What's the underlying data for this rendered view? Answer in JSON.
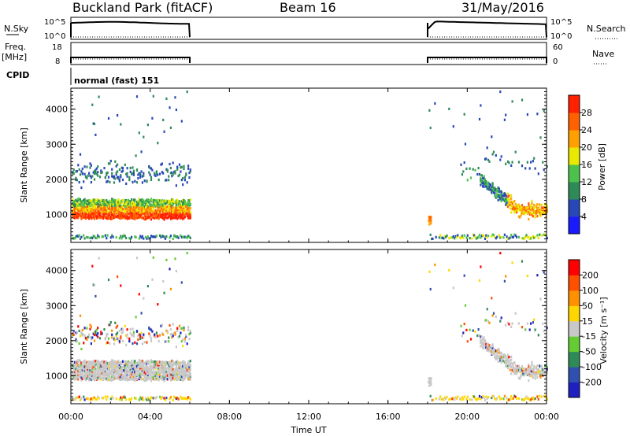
{
  "header": {
    "station": "Buckland Park (fitACF)",
    "beam": "Beam 16",
    "date": "31/May/2016"
  },
  "strips": {
    "nsky_label": "N.Sky",
    "nsearch_label": "N.Search",
    "nsky_ticks": [
      "10^5",
      "10^0"
    ],
    "nsearch_ticks": [
      "10^5",
      "10^0"
    ],
    "freq_label": "Freq.",
    "freq_unit": "[MHz]",
    "freq_ticks": [
      "18",
      "8"
    ],
    "nave_label": "Nave",
    "nave_ticks": [
      "60",
      "0"
    ],
    "cpid_label": "CPID",
    "cpid_text": "normal (fast) 151"
  },
  "xaxis": {
    "label": "Time UT",
    "ticks": [
      "00:00",
      "04:00",
      "08:00",
      "12:00",
      "16:00",
      "20:00",
      "00:00"
    ],
    "range_hours": [
      0,
      24
    ]
  },
  "colors": {
    "power": [
      "#1a1aff",
      "#2848b8",
      "#2e8b57",
      "#4cc24c",
      "#e8e800",
      "#ffa000",
      "#ff6000",
      "#ff2000"
    ],
    "velocity": [
      "#2020c0",
      "#3050b0",
      "#2e8b57",
      "#66cc33",
      "#c8c8c8",
      "#ffd700",
      "#ff9000",
      "#ff5000",
      "#ff0000"
    ]
  },
  "chart_data": [
    {
      "type": "heatmap",
      "ylabel": "Slant Range [km]",
      "yticks": [
        "1000",
        "2000",
        "3000",
        "4000"
      ],
      "ytick_values": [
        1000,
        2000,
        3000,
        4000
      ],
      "ylim": [
        200,
        4600
      ],
      "xlim": [
        0,
        24
      ],
      "colorbar_label": "Power [dB]",
      "colorbar_ticks": [
        "4",
        "8",
        "12",
        "16",
        "20",
        "24",
        "28"
      ],
      "colorbar_range": [
        0,
        30
      ],
      "data_segments_hours": [
        [
          0,
          6
        ],
        [
          18,
          24
        ]
      ]
    },
    {
      "type": "heatmap",
      "ylabel": "Slant Range [km]",
      "yticks": [
        "1000",
        "2000",
        "3000",
        "4000"
      ],
      "ytick_values": [
        1000,
        2000,
        3000,
        4000
      ],
      "ylim": [
        200,
        4600
      ],
      "xlim": [
        0,
        24
      ],
      "colorbar_label": "Velocity [m s⁻¹]",
      "colorbar_ticks": [
        "200",
        "100",
        "50",
        "15",
        "-15",
        "-50",
        "-100",
        "-200"
      ],
      "colorbar_range": [
        -250,
        250
      ],
      "data_segments_hours": [
        [
          0,
          6
        ],
        [
          18,
          24
        ]
      ]
    }
  ]
}
